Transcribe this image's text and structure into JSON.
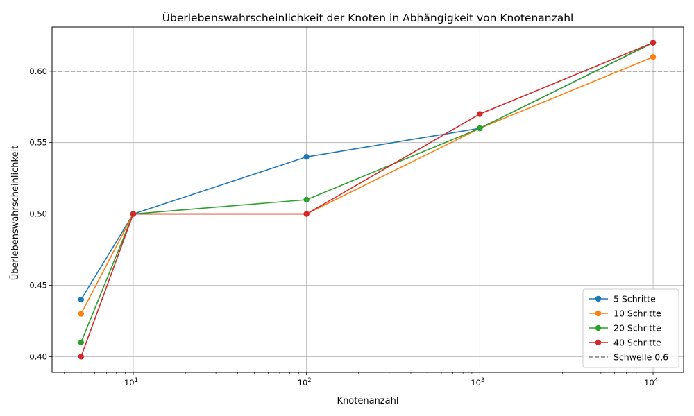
{
  "chart_data": {
    "type": "line",
    "title": "Überlebenswahrscheinlichkeit der Knoten in Abhängigkeit von Knotenanzahl",
    "xlabel": "Knotenanzahl",
    "ylabel": "Überlebenswahrscheinlichkeit",
    "x_scale": "log",
    "xlim": [
      3.4,
      15000
    ],
    "ylim": [
      0.389,
      0.631
    ],
    "x_ticks": [
      {
        "value": 10,
        "base": "10",
        "exp": "1"
      },
      {
        "value": 100,
        "base": "10",
        "exp": "2"
      },
      {
        "value": 1000,
        "base": "10",
        "exp": "3"
      },
      {
        "value": 10000,
        "base": "10",
        "exp": "4"
      }
    ],
    "y_ticks": [
      {
        "value": 0.4,
        "label": "0.40"
      },
      {
        "value": 0.45,
        "label": "0.45"
      },
      {
        "value": 0.5,
        "label": "0.50"
      },
      {
        "value": 0.55,
        "label": "0.55"
      },
      {
        "value": 0.6,
        "label": "0.60"
      }
    ],
    "grid": true,
    "legend_position": "lower-right",
    "x": [
      5,
      10,
      100,
      1000,
      10000
    ],
    "series": [
      {
        "name": "5 Schritte",
        "color": "#1f77b4",
        "values": [
          0.44,
          0.5,
          0.54,
          0.56,
          0.62
        ]
      },
      {
        "name": "10 Schritte",
        "color": "#ff7f0e",
        "values": [
          0.43,
          0.5,
          0.5,
          0.56,
          0.61
        ]
      },
      {
        "name": "20 Schritte",
        "color": "#2ca02c",
        "values": [
          0.41,
          0.5,
          0.51,
          0.56,
          0.62
        ]
      },
      {
        "name": "40 Schritte",
        "color": "#d62728",
        "values": [
          0.4,
          0.5,
          0.5,
          0.57,
          0.62
        ]
      }
    ],
    "reference_line": {
      "name": "Schwelle 0.6",
      "value": 0.6,
      "color": "#808080",
      "style": "dashed"
    }
  }
}
